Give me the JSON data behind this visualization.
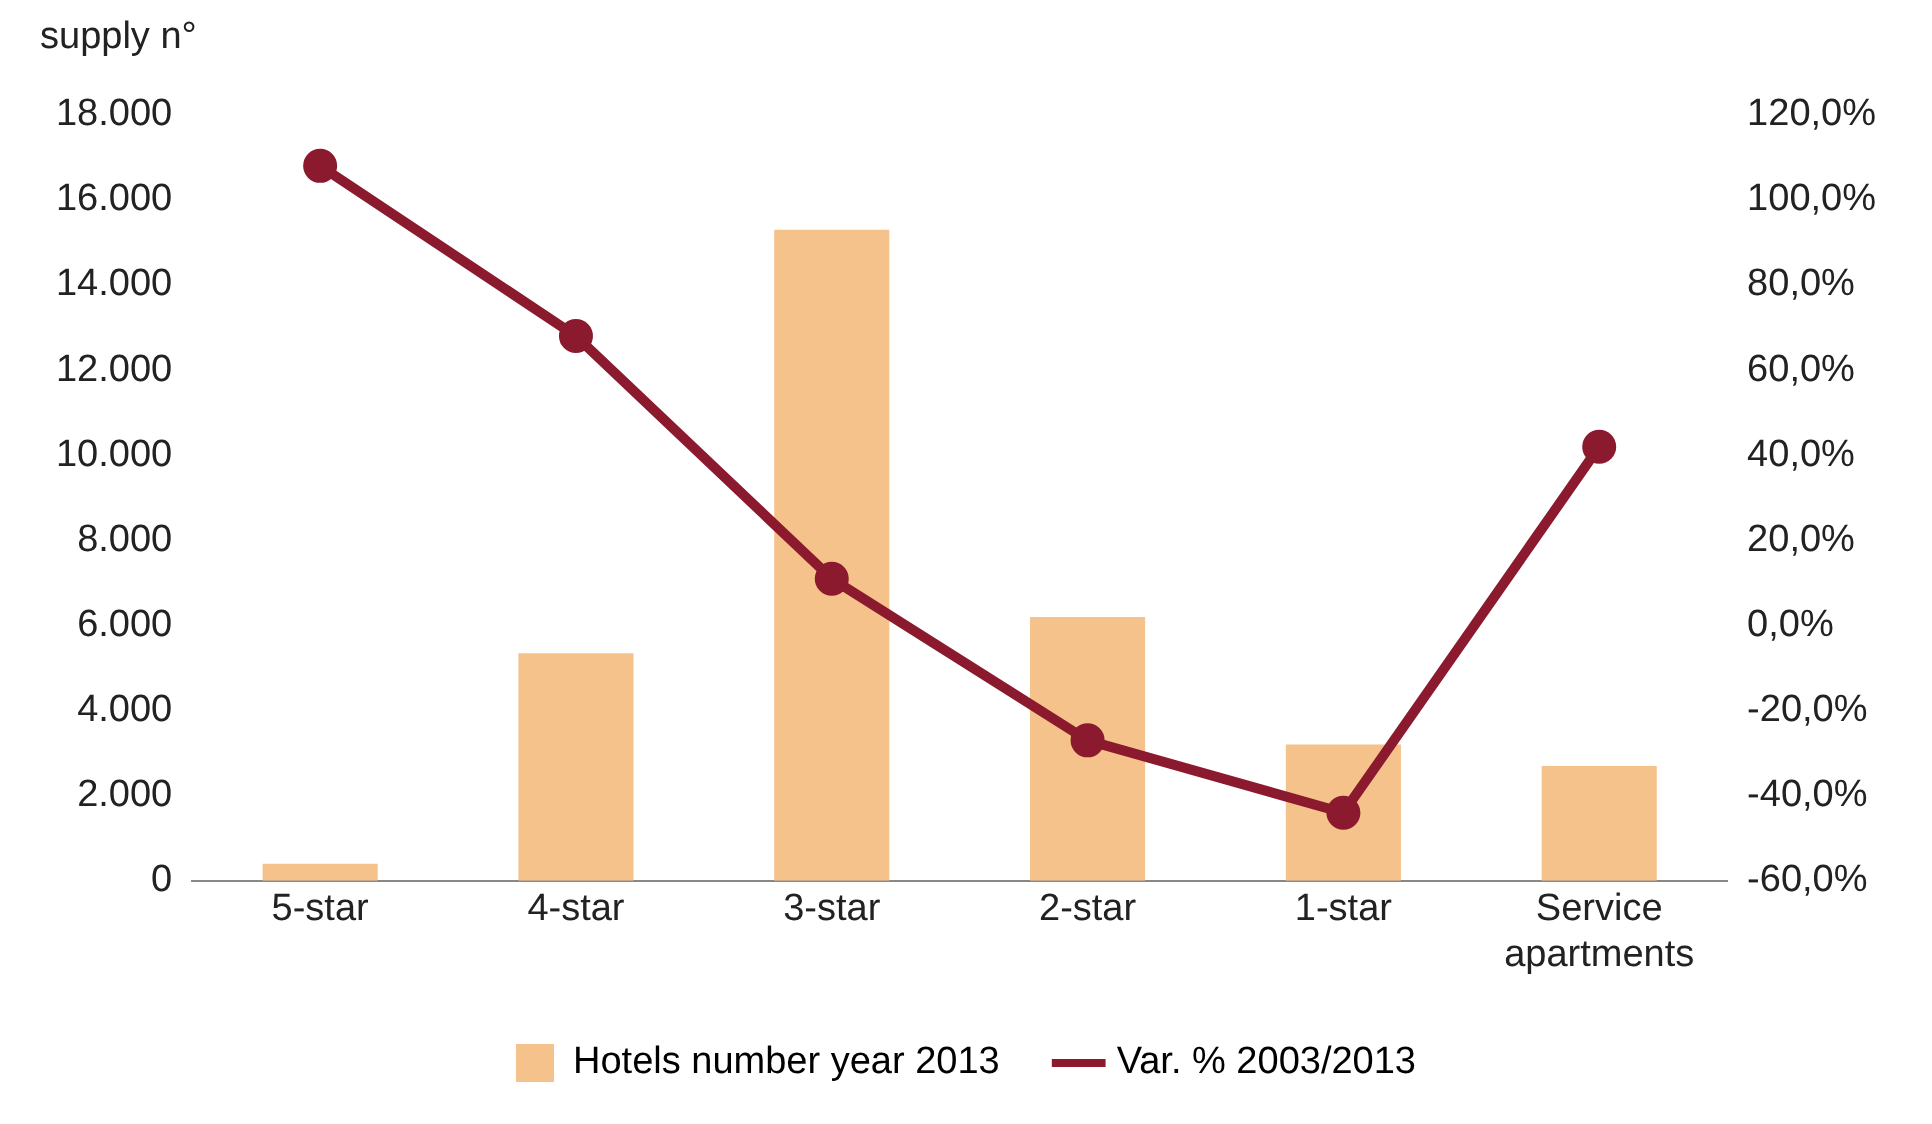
{
  "chart_data": {
    "type": "bar",
    "ylabel": "supply n°",
    "categories": [
      "5-star",
      "4-star",
      "3-star",
      "2-star",
      "1-star",
      "Service apartments"
    ],
    "series": [
      {
        "name": "Hotels number year 2013",
        "color": "#f6c28b",
        "values": [
          400,
          5350,
          15300,
          6200,
          3200,
          2700
        ]
      },
      {
        "name": "Var. % 2003/2013",
        "type": "line",
        "axis": "y2",
        "color": "#8b1a2e",
        "marker": "circle",
        "values": [
          108,
          68,
          11,
          -27,
          -44,
          42
        ]
      }
    ],
    "ylim": [
      0,
      18000
    ],
    "yticks": [
      0,
      {
        "value": 2000,
        "label": "2.000"
      },
      {
        "value": 4000,
        "label": "4.000"
      },
      {
        "value": 6000,
        "label": "6.000"
      },
      {
        "value": 8000,
        "label": "8.000"
      },
      {
        "value": 10000,
        "label": "10.000"
      },
      {
        "value": 12000,
        "label": "12.000"
      },
      {
        "value": 14000,
        "label": "14.000"
      },
      {
        "value": 16000,
        "label": "16.000"
      },
      {
        "value": 18000,
        "label": "18.000"
      }
    ],
    "y2lim": [
      -60,
      120
    ],
    "y2ticks": [
      {
        "value": -60,
        "label": "-60,0%"
      },
      {
        "value": -40,
        "label": "-40,0%"
      },
      {
        "value": -20,
        "label": "-20,0%"
      },
      {
        "value": 0,
        "label": "0,0%"
      },
      {
        "value": 20,
        "label": "20,0%"
      },
      {
        "value": 40,
        "label": "40,0%"
      },
      {
        "value": 60,
        "label": "60,0%"
      },
      {
        "value": 80,
        "label": "80,0%"
      },
      {
        "value": 100,
        "label": "100,0%"
      },
      {
        "value": 120,
        "label": "120,0%"
      }
    ],
    "grid": false,
    "legend": "bottom"
  }
}
